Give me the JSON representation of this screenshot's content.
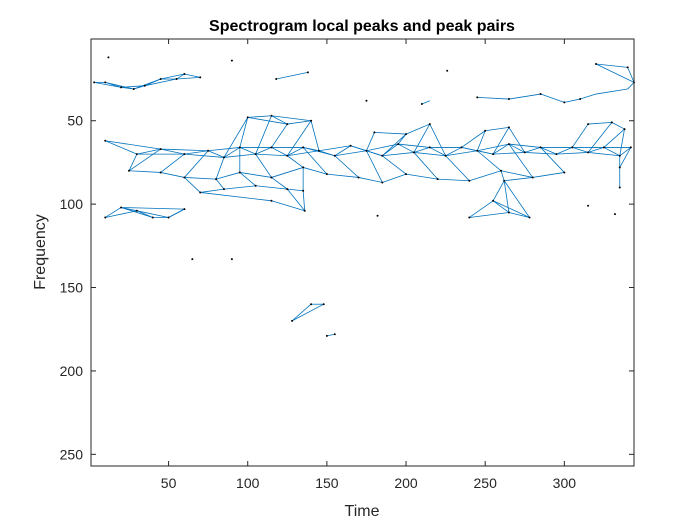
{
  "chart_data": {
    "type": "scatter",
    "title": "Spectrogram local peaks and peak pairs",
    "xlabel": "Time",
    "ylabel": "Frequency",
    "xlim": [
      1,
      344
    ],
    "ylim": [
      1,
      257
    ],
    "y_reversed": true,
    "x_ticks": [
      50,
      100,
      150,
      200,
      250,
      300
    ],
    "y_ticks": [
      50,
      100,
      150,
      200,
      250
    ],
    "grid": false,
    "legend": "none",
    "colors": {
      "line": "#0072bd",
      "marker": "#000000",
      "axes": "#262626"
    },
    "peaks": [
      [
        3,
        27
      ],
      [
        10,
        27
      ],
      [
        20,
        30
      ],
      [
        28,
        31
      ],
      [
        35,
        29
      ],
      [
        45,
        25
      ],
      [
        55,
        25
      ],
      [
        60,
        22
      ],
      [
        70,
        24
      ],
      [
        12,
        12
      ],
      [
        90,
        14
      ],
      [
        118,
        25
      ],
      [
        138,
        21
      ],
      [
        175,
        38
      ],
      [
        210,
        40
      ],
      [
        226,
        20
      ],
      [
        245,
        36
      ],
      [
        265,
        37
      ],
      [
        285,
        34
      ],
      [
        300,
        39
      ],
      [
        310,
        37
      ],
      [
        320,
        16
      ],
      [
        340,
        18
      ],
      [
        345,
        27
      ],
      [
        10,
        62
      ],
      [
        30,
        70
      ],
      [
        45,
        67
      ],
      [
        60,
        70
      ],
      [
        75,
        68
      ],
      [
        85,
        72
      ],
      [
        95,
        66
      ],
      [
        105,
        70
      ],
      [
        115,
        66
      ],
      [
        125,
        71
      ],
      [
        135,
        66
      ],
      [
        145,
        68
      ],
      [
        155,
        71
      ],
      [
        165,
        65
      ],
      [
        175,
        68
      ],
      [
        185,
        71
      ],
      [
        195,
        64
      ],
      [
        205,
        69
      ],
      [
        215,
        66
      ],
      [
        225,
        71
      ],
      [
        235,
        66
      ],
      [
        245,
        68
      ],
      [
        255,
        70
      ],
      [
        265,
        64
      ],
      [
        275,
        69
      ],
      [
        285,
        66
      ],
      [
        295,
        70
      ],
      [
        305,
        66
      ],
      [
        315,
        69
      ],
      [
        325,
        66
      ],
      [
        335,
        71
      ],
      [
        342,
        66
      ],
      [
        100,
        48
      ],
      [
        115,
        47
      ],
      [
        125,
        52
      ],
      [
        140,
        50
      ],
      [
        180,
        57
      ],
      [
        200,
        58
      ],
      [
        215,
        52
      ],
      [
        250,
        56
      ],
      [
        265,
        54
      ],
      [
        315,
        52
      ],
      [
        330,
        51
      ],
      [
        338,
        55
      ],
      [
        25,
        80
      ],
      [
        45,
        81
      ],
      [
        60,
        84
      ],
      [
        80,
        85
      ],
      [
        95,
        81
      ],
      [
        115,
        84
      ],
      [
        135,
        78
      ],
      [
        150,
        82
      ],
      [
        170,
        84
      ],
      [
        185,
        87
      ],
      [
        200,
        82
      ],
      [
        220,
        85
      ],
      [
        240,
        86
      ],
      [
        260,
        80
      ],
      [
        280,
        84
      ],
      [
        300,
        81
      ],
      [
        335,
        90
      ],
      [
        335,
        78
      ],
      [
        70,
        93
      ],
      [
        85,
        91
      ],
      [
        105,
        89
      ],
      [
        125,
        91
      ],
      [
        135,
        92
      ],
      [
        115,
        98
      ],
      [
        136,
        104
      ],
      [
        10,
        108
      ],
      [
        20,
        102
      ],
      [
        30,
        104
      ],
      [
        40,
        108
      ],
      [
        50,
        108
      ],
      [
        60,
        103
      ],
      [
        240,
        108
      ],
      [
        255,
        98
      ],
      [
        265,
        105
      ],
      [
        278,
        108
      ],
      [
        262,
        86
      ],
      [
        315,
        101
      ],
      [
        332,
        106
      ],
      [
        182,
        107
      ],
      [
        65,
        133
      ],
      [
        90,
        133
      ],
      [
        128,
        170
      ],
      [
        140,
        160
      ],
      [
        148,
        160
      ],
      [
        150,
        179
      ],
      [
        155,
        178
      ]
    ],
    "pairs": [
      [
        3,
        27,
        10,
        27
      ],
      [
        3,
        27,
        20,
        30
      ],
      [
        10,
        27,
        20,
        30
      ],
      [
        10,
        27,
        28,
        31
      ],
      [
        20,
        30,
        28,
        31
      ],
      [
        20,
        30,
        35,
        29
      ],
      [
        28,
        31,
        35,
        29
      ],
      [
        28,
        31,
        45,
        25
      ],
      [
        35,
        29,
        45,
        25
      ],
      [
        35,
        29,
        55,
        25
      ],
      [
        45,
        25,
        55,
        25
      ],
      [
        45,
        25,
        60,
        22
      ],
      [
        55,
        25,
        60,
        22
      ],
      [
        55,
        25,
        70,
        24
      ],
      [
        60,
        22,
        70,
        24
      ],
      [
        118,
        25,
        138,
        21
      ],
      [
        210,
        40,
        215,
        38
      ],
      [
        245,
        36,
        265,
        37
      ],
      [
        265,
        37,
        285,
        34
      ],
      [
        285,
        34,
        300,
        39
      ],
      [
        300,
        39,
        310,
        37
      ],
      [
        310,
        37,
        320,
        34
      ],
      [
        320,
        34,
        340,
        31
      ],
      [
        340,
        31,
        345,
        27
      ],
      [
        320,
        16,
        340,
        18
      ],
      [
        340,
        18,
        345,
        27
      ],
      [
        320,
        16,
        345,
        27
      ],
      [
        10,
        62,
        30,
        70
      ],
      [
        30,
        70,
        45,
        67
      ],
      [
        45,
        67,
        60,
        70
      ],
      [
        60,
        70,
        75,
        68
      ],
      [
        75,
        68,
        85,
        72
      ],
      [
        85,
        72,
        95,
        66
      ],
      [
        95,
        66,
        105,
        70
      ],
      [
        105,
        70,
        115,
        66
      ],
      [
        115,
        66,
        125,
        71
      ],
      [
        125,
        71,
        135,
        66
      ],
      [
        135,
        66,
        145,
        68
      ],
      [
        145,
        68,
        155,
        71
      ],
      [
        155,
        71,
        165,
        65
      ],
      [
        165,
        65,
        175,
        68
      ],
      [
        175,
        68,
        185,
        71
      ],
      [
        185,
        71,
        195,
        64
      ],
      [
        195,
        64,
        205,
        69
      ],
      [
        205,
        69,
        215,
        66
      ],
      [
        215,
        66,
        225,
        71
      ],
      [
        225,
        71,
        235,
        66
      ],
      [
        235,
        66,
        245,
        68
      ],
      [
        245,
        68,
        255,
        70
      ],
      [
        255,
        70,
        265,
        64
      ],
      [
        265,
        64,
        275,
        69
      ],
      [
        275,
        69,
        285,
        66
      ],
      [
        285,
        66,
        295,
        70
      ],
      [
        295,
        70,
        305,
        66
      ],
      [
        305,
        66,
        315,
        69
      ],
      [
        315,
        69,
        325,
        66
      ],
      [
        325,
        66,
        335,
        71
      ],
      [
        335,
        71,
        342,
        66
      ],
      [
        10,
        62,
        45,
        67
      ],
      [
        30,
        70,
        60,
        70
      ],
      [
        45,
        67,
        75,
        68
      ],
      [
        60,
        70,
        85,
        72
      ],
      [
        75,
        68,
        95,
        66
      ],
      [
        85,
        72,
        105,
        70
      ],
      [
        95,
        66,
        115,
        66
      ],
      [
        105,
        70,
        125,
        71
      ],
      [
        115,
        66,
        135,
        66
      ],
      [
        125,
        71,
        145,
        68
      ],
      [
        135,
        66,
        155,
        71
      ],
      [
        145,
        68,
        165,
        65
      ],
      [
        155,
        71,
        175,
        68
      ],
      [
        165,
        65,
        185,
        71
      ],
      [
        175,
        68,
        195,
        64
      ],
      [
        185,
        71,
        205,
        69
      ],
      [
        195,
        64,
        215,
        66
      ],
      [
        205,
        69,
        225,
        71
      ],
      [
        215,
        66,
        235,
        66
      ],
      [
        225,
        71,
        245,
        68
      ],
      [
        235,
        66,
        255,
        70
      ],
      [
        245,
        68,
        265,
        64
      ],
      [
        255,
        70,
        275,
        69
      ],
      [
        265,
        64,
        285,
        66
      ],
      [
        275,
        69,
        295,
        70
      ],
      [
        285,
        66,
        305,
        66
      ],
      [
        295,
        70,
        315,
        69
      ],
      [
        305,
        66,
        325,
        66
      ],
      [
        315,
        69,
        335,
        71
      ],
      [
        325,
        66,
        342,
        66
      ],
      [
        85,
        72,
        100,
        48
      ],
      [
        100,
        48,
        115,
        47
      ],
      [
        115,
        47,
        125,
        52
      ],
      [
        125,
        52,
        140,
        50
      ],
      [
        100,
        48,
        125,
        52
      ],
      [
        115,
        47,
        140,
        50
      ],
      [
        95,
        66,
        100,
        48
      ],
      [
        105,
        70,
        115,
        47
      ],
      [
        115,
        66,
        125,
        52
      ],
      [
        125,
        71,
        140,
        50
      ],
      [
        140,
        50,
        145,
        68
      ],
      [
        175,
        68,
        180,
        57
      ],
      [
        180,
        57,
        200,
        58
      ],
      [
        200,
        58,
        215,
        52
      ],
      [
        185,
        71,
        200,
        58
      ],
      [
        195,
        64,
        200,
        58
      ],
      [
        205,
        69,
        215,
        52
      ],
      [
        215,
        52,
        225,
        71
      ],
      [
        235,
        66,
        250,
        56
      ],
      [
        250,
        56,
        265,
        54
      ],
      [
        245,
        68,
        250,
        56
      ],
      [
        255,
        70,
        265,
        54
      ],
      [
        265,
        54,
        275,
        69
      ],
      [
        305,
        66,
        315,
        52
      ],
      [
        315,
        52,
        330,
        51
      ],
      [
        330,
        51,
        338,
        55
      ],
      [
        315,
        69,
        330,
        51
      ],
      [
        325,
        66,
        338,
        55
      ],
      [
        335,
        71,
        338,
        55
      ],
      [
        30,
        70,
        25,
        80
      ],
      [
        25,
        80,
        45,
        81
      ],
      [
        45,
        81,
        60,
        84
      ],
      [
        60,
        84,
        80,
        85
      ],
      [
        80,
        85,
        95,
        81
      ],
      [
        95,
        81,
        115,
        84
      ],
      [
        115,
        84,
        135,
        78
      ],
      [
        135,
        78,
        150,
        82
      ],
      [
        150,
        82,
        170,
        84
      ],
      [
        170,
        84,
        185,
        87
      ],
      [
        185,
        87,
        200,
        82
      ],
      [
        200,
        82,
        220,
        85
      ],
      [
        220,
        85,
        240,
        86
      ],
      [
        240,
        86,
        260,
        80
      ],
      [
        260,
        80,
        280,
        84
      ],
      [
        280,
        84,
        300,
        81
      ],
      [
        45,
        67,
        25,
        80
      ],
      [
        60,
        70,
        45,
        81
      ],
      [
        75,
        68,
        60,
        84
      ],
      [
        85,
        72,
        80,
        85
      ],
      [
        95,
        66,
        95,
        81
      ],
      [
        105,
        70,
        115,
        84
      ],
      [
        125,
        71,
        135,
        78
      ],
      [
        135,
        66,
        150,
        82
      ],
      [
        155,
        71,
        170,
        84
      ],
      [
        175,
        68,
        185,
        87
      ],
      [
        185,
        71,
        200,
        82
      ],
      [
        205,
        69,
        220,
        85
      ],
      [
        225,
        71,
        240,
        86
      ],
      [
        245,
        68,
        260,
        80
      ],
      [
        265,
        64,
        280,
        84
      ],
      [
        285,
        66,
        300,
        81
      ],
      [
        335,
        71,
        335,
        78
      ],
      [
        335,
        78,
        335,
        90
      ],
      [
        342,
        66,
        335,
        78
      ],
      [
        60,
        84,
        70,
        93
      ],
      [
        70,
        93,
        85,
        91
      ],
      [
        85,
        91,
        105,
        89
      ],
      [
        105,
        89,
        125,
        91
      ],
      [
        125,
        91,
        135,
        92
      ],
      [
        80,
        85,
        85,
        91
      ],
      [
        95,
        81,
        105,
        89
      ],
      [
        115,
        84,
        125,
        91
      ],
      [
        135,
        78,
        135,
        92
      ],
      [
        70,
        93,
        115,
        98
      ],
      [
        115,
        98,
        136,
        104
      ],
      [
        125,
        91,
        136,
        104
      ],
      [
        135,
        92,
        136,
        104
      ],
      [
        10,
        108,
        20,
        102
      ],
      [
        20,
        102,
        30,
        104
      ],
      [
        30,
        104,
        40,
        108
      ],
      [
        40,
        108,
        50,
        108
      ],
      [
        50,
        108,
        60,
        103
      ],
      [
        10,
        108,
        30,
        104
      ],
      [
        20,
        102,
        40,
        108
      ],
      [
        30,
        104,
        50,
        108
      ],
      [
        50,
        108,
        60,
        103
      ],
      [
        20,
        102,
        60,
        103
      ],
      [
        240,
        108,
        255,
        98
      ],
      [
        255,
        98,
        265,
        105
      ],
      [
        265,
        105,
        278,
        108
      ],
      [
        240,
        108,
        265,
        105
      ],
      [
        255,
        98,
        278,
        108
      ],
      [
        255,
        98,
        262,
        86
      ],
      [
        262,
        86,
        265,
        105
      ],
      [
        262,
        86,
        278,
        108
      ],
      [
        260,
        80,
        262,
        86
      ],
      [
        280,
        84,
        262,
        86
      ],
      [
        128,
        170,
        140,
        160
      ],
      [
        140,
        160,
        148,
        160
      ],
      [
        128,
        170,
        148,
        160
      ],
      [
        150,
        179,
        155,
        178
      ]
    ]
  }
}
